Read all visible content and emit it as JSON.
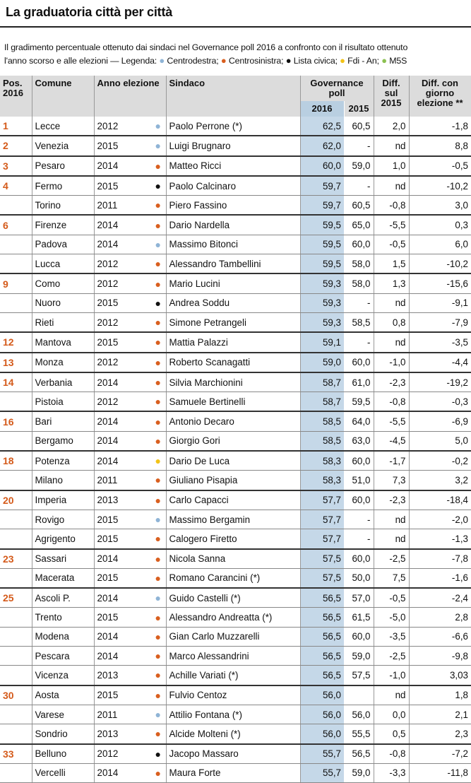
{
  "title": "La graduatoria città per città",
  "subtitle_main": "Il gradimento percentuale ottenuto dai sindaci nel Governance poll 2016 a confronto con il risultato ottenuto",
  "subtitle_second": "l'anno scorso e alle elezioni — Legenda:",
  "legend": [
    {
      "label": "Centrodestra;",
      "color": "#8fb4d6"
    },
    {
      "label": "Centrosinistra;",
      "color": "#d95f1f"
    },
    {
      "label": "Lista civica;",
      "color": "#111111"
    },
    {
      "label": "Fdi - An;",
      "color": "#f2c318"
    },
    {
      "label": "M5S",
      "color": "#8cc152"
    }
  ],
  "headers": {
    "pos": "Pos. 2016",
    "comune": "Comune",
    "anno": "Anno elezione",
    "sindaco": "Sindaco",
    "poll": "Governance poll",
    "y2016": "2016",
    "y2015": "2015",
    "diff2015": "Diff. sul 2015",
    "diffelez": "Diff. con giorno elezione **"
  },
  "rows": [
    {
      "pos": "1",
      "comune": "Lecce",
      "anno": "2012",
      "party": "#8fb4d6",
      "sindaco": "Paolo Perrone (*)",
      "p2016": "62,5",
      "p2015": "60,5",
      "d15": "2,0",
      "del": "-1,8",
      "g": true
    },
    {
      "pos": "2",
      "comune": "Venezia",
      "anno": "2015",
      "party": "#8fb4d6",
      "sindaco": "Luigi Brugnaro",
      "p2016": "62,0",
      "p2015": "-",
      "d15": "nd",
      "del": "8,8",
      "g": true
    },
    {
      "pos": "3",
      "comune": "Pesaro",
      "anno": "2014",
      "party": "#d95f1f",
      "sindaco": "Matteo Ricci",
      "p2016": "60,0",
      "p2015": "59,0",
      "d15": "1,0",
      "del": "-0,5",
      "g": true
    },
    {
      "pos": "4",
      "comune": "Fermo",
      "anno": "2015",
      "party": "#111111",
      "sindaco": "Paolo Calcinaro",
      "p2016": "59,7",
      "p2015": "-",
      "d15": "nd",
      "del": "-10,2",
      "g": true
    },
    {
      "pos": "",
      "comune": "Torino",
      "anno": "2011",
      "party": "#d95f1f",
      "sindaco": "Piero Fassino",
      "p2016": "59,7",
      "p2015": "60,5",
      "d15": "-0,8",
      "del": "3,0",
      "g": false
    },
    {
      "pos": "6",
      "comune": "Firenze",
      "anno": "2014",
      "party": "#d95f1f",
      "sindaco": "Dario Nardella",
      "p2016": "59,5",
      "p2015": "65,0",
      "d15": "-5,5",
      "del": "0,3",
      "g": true
    },
    {
      "pos": "",
      "comune": "Padova",
      "anno": "2014",
      "party": "#8fb4d6",
      "sindaco": "Massimo Bitonci",
      "p2016": "59,5",
      "p2015": "60,0",
      "d15": "-0,5",
      "del": "6,0",
      "g": false
    },
    {
      "pos": "",
      "comune": "Lucca",
      "anno": "2012",
      "party": "#d95f1f",
      "sindaco": "Alessandro Tambellini",
      "p2016": "59,5",
      "p2015": "58,0",
      "d15": "1,5",
      "del": "-10,2",
      "g": false
    },
    {
      "pos": "9",
      "comune": "Como",
      "anno": "2012",
      "party": "#d95f1f",
      "sindaco": "Mario Lucini",
      "p2016": "59,3",
      "p2015": "58,0",
      "d15": "1,3",
      "del": "-15,6",
      "g": true
    },
    {
      "pos": "",
      "comune": "Nuoro",
      "anno": "2015",
      "party": "#111111",
      "sindaco": "Andrea Soddu",
      "p2016": "59,3",
      "p2015": "-",
      "d15": "nd",
      "del": "-9,1",
      "g": false
    },
    {
      "pos": "",
      "comune": "Rieti",
      "anno": "2012",
      "party": "#d95f1f",
      "sindaco": "Simone Petrangeli",
      "p2016": "59,3",
      "p2015": "58,5",
      "d15": "0,8",
      "del": "-7,9",
      "g": false
    },
    {
      "pos": "12",
      "comune": "Mantova",
      "anno": "2015",
      "party": "#d95f1f",
      "sindaco": "Mattia Palazzi",
      "p2016": "59,1",
      "p2015": "-",
      "d15": "nd",
      "del": "-3,5",
      "g": true
    },
    {
      "pos": "13",
      "comune": "Monza",
      "anno": "2012",
      "party": "#d95f1f",
      "sindaco": "Roberto Scanagatti",
      "p2016": "59,0",
      "p2015": "60,0",
      "d15": "-1,0",
      "del": "-4,4",
      "g": true
    },
    {
      "pos": "14",
      "comune": "Verbania",
      "anno": "2014",
      "party": "#d95f1f",
      "sindaco": "Silvia Marchionini",
      "p2016": "58,7",
      "p2015": "61,0",
      "d15": "-2,3",
      "del": "-19,2",
      "g": true
    },
    {
      "pos": "",
      "comune": "Pistoia",
      "anno": "2012",
      "party": "#d95f1f",
      "sindaco": "Samuele Bertinelli",
      "p2016": "58,7",
      "p2015": "59,5",
      "d15": "-0,8",
      "del": "-0,3",
      "g": false
    },
    {
      "pos": "16",
      "comune": "Bari",
      "anno": "2014",
      "party": "#d95f1f",
      "sindaco": "Antonio Decaro",
      "p2016": "58,5",
      "p2015": "64,0",
      "d15": "-5,5",
      "del": "-6,9",
      "g": true
    },
    {
      "pos": "",
      "comune": "Bergamo",
      "anno": "2014",
      "party": "#d95f1f",
      "sindaco": "Giorgio Gori",
      "p2016": "58,5",
      "p2015": "63,0",
      "d15": "-4,5",
      "del": "5,0",
      "g": false
    },
    {
      "pos": "18",
      "comune": "Potenza",
      "anno": "2014",
      "party": "#f2c318",
      "sindaco": "Dario De Luca",
      "p2016": "58,3",
      "p2015": "60,0",
      "d15": "-1,7",
      "del": "-0,2",
      "g": true
    },
    {
      "pos": "",
      "comune": "Milano",
      "anno": "2011",
      "party": "#d95f1f",
      "sindaco": "Giuliano Pisapia",
      "p2016": "58,3",
      "p2015": "51,0",
      "d15": "7,3",
      "del": "3,2",
      "g": false
    },
    {
      "pos": "20",
      "comune": "Imperia",
      "anno": "2013",
      "party": "#d95f1f",
      "sindaco": "Carlo Capacci",
      "p2016": "57,7",
      "p2015": "60,0",
      "d15": "-2,3",
      "del": "-18,4",
      "g": true
    },
    {
      "pos": "",
      "comune": "Rovigo",
      "anno": "2015",
      "party": "#8fb4d6",
      "sindaco": "Massimo Bergamin",
      "p2016": "57,7",
      "p2015": "-",
      "d15": "nd",
      "del": "-2,0",
      "g": false
    },
    {
      "pos": "",
      "comune": "Agrigento",
      "anno": "2015",
      "party": "#d95f1f",
      "sindaco": "Calogero Firetto",
      "p2016": "57,7",
      "p2015": "-",
      "d15": "nd",
      "del": "-1,3",
      "g": false
    },
    {
      "pos": "23",
      "comune": "Sassari",
      "anno": "2014",
      "party": "#d95f1f",
      "sindaco": "Nicola Sanna",
      "p2016": "57,5",
      "p2015": "60,0",
      "d15": "-2,5",
      "del": "-7,8",
      "g": true
    },
    {
      "pos": "",
      "comune": "Macerata",
      "anno": "2015",
      "party": "#d95f1f",
      "sindaco": "Romano Carancini (*)",
      "p2016": "57,5",
      "p2015": "50,0",
      "d15": "7,5",
      "del": "-1,6",
      "g": false
    },
    {
      "pos": "25",
      "comune": "Ascoli P.",
      "anno": "2014",
      "party": "#8fb4d6",
      "sindaco": "Guido Castelli (*)",
      "p2016": "56,5",
      "p2015": "57,0",
      "d15": "-0,5",
      "del": "-2,4",
      "g": true
    },
    {
      "pos": "",
      "comune": "Trento",
      "anno": "2015",
      "party": "#d95f1f",
      "sindaco": "Alessandro Andreatta (*)",
      "p2016": "56,5",
      "p2015": "61,5",
      "d15": "-5,0",
      "del": "2,8",
      "g": false
    },
    {
      "pos": "",
      "comune": "Modena",
      "anno": "2014",
      "party": "#d95f1f",
      "sindaco": "Gian Carlo Muzzarelli",
      "p2016": "56,5",
      "p2015": "60,0",
      "d15": "-3,5",
      "del": "-6,6",
      "g": false
    },
    {
      "pos": "",
      "comune": "Pescara",
      "anno": "2014",
      "party": "#d95f1f",
      "sindaco": "Marco Alessandrini",
      "p2016": "56,5",
      "p2015": "59,0",
      "d15": "-2,5",
      "del": "-9,8",
      "g": false
    },
    {
      "pos": "",
      "comune": "Vicenza",
      "anno": "2013",
      "party": "#d95f1f",
      "sindaco": "Achille Variati (*)",
      "p2016": "56,5",
      "p2015": "57,5",
      "d15": "-1,0",
      "del": "3,03",
      "g": false
    },
    {
      "pos": "30",
      "comune": "Aosta",
      "anno": "2015",
      "party": "#d95f1f",
      "sindaco": "Fulvio Centoz",
      "p2016": "56,0",
      "p2015": "",
      "d15": "nd",
      "del": "1,8",
      "g": true
    },
    {
      "pos": "",
      "comune": "Varese",
      "anno": "2011",
      "party": "#8fb4d6",
      "sindaco": "Attilio Fontana (*)",
      "p2016": "56,0",
      "p2015": "56,0",
      "d15": "0,0",
      "del": "2,1",
      "g": false
    },
    {
      "pos": "",
      "comune": "Sondrio",
      "anno": "2013",
      "party": "#d95f1f",
      "sindaco": "Alcide Molteni (*)",
      "p2016": "56,0",
      "p2015": "55,5",
      "d15": "0,5",
      "del": "2,3",
      "g": false
    },
    {
      "pos": "33",
      "comune": "Belluno",
      "anno": "2012",
      "party": "#111111",
      "sindaco": "Jacopo Massaro",
      "p2016": "55,7",
      "p2015": "56,5",
      "d15": "-0,8",
      "del": "-7,2",
      "g": true
    },
    {
      "pos": "",
      "comune": "Vercelli",
      "anno": "2014",
      "party": "#d95f1f",
      "sindaco": "Maura Forte",
      "p2016": "55,7",
      "p2015": "59,0",
      "d15": "-3,3",
      "del": "-11,8",
      "g": false
    }
  ]
}
